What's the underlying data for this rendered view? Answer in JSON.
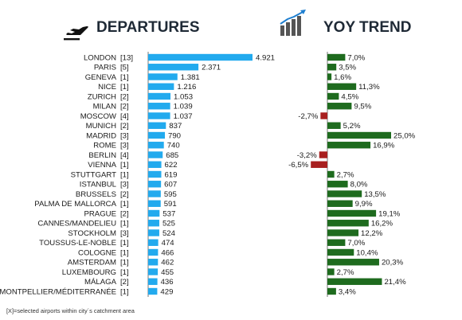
{
  "header": {
    "departures_title": "DEPARTURES",
    "trend_title": "YOY TREND",
    "departures_icon": "airplane-takeoff-icon",
    "trend_icon": "rising-bar-chart-icon"
  },
  "footnote": "[X]=selected airports within city´s catchment area",
  "chart_data": [
    {
      "type": "bar",
      "orientation": "horizontal",
      "title": "DEPARTURES",
      "categories": [
        "LONDON",
        "PARIS",
        "GENEVA",
        "NICE",
        "ZURICH",
        "MILAN",
        "MOSCOW",
        "MUNICH",
        "MADRID",
        "ROME",
        "BERLIN",
        "VIENNA",
        "STUTTGART",
        "ISTANBUL",
        "BRUSSELS",
        "PALMA DE MALLORCA",
        "PRAGUE",
        "CANNES/MANDELIEU",
        "STOCKHOLM",
        "TOUSSUS-LE-NOBLE",
        "COLOGNE",
        "AMSTERDAM",
        "LUXEMBOURG",
        "MÁLAGA",
        "MONTPELLIER/MÉDITERRANÉE"
      ],
      "airport_counts": [
        "[13]",
        "[5]",
        "[1]",
        "[1]",
        "[2]",
        "[2]",
        "[4]",
        "[2]",
        "[3]",
        "[3]",
        "[4]",
        "[1]",
        "[1]",
        "[3]",
        "[2]",
        "[1]",
        "[2]",
        "[1]",
        "[3]",
        "[1]",
        "[1]",
        "[1]",
        "[1]",
        "[2]",
        "[1]"
      ],
      "values": [
        4921,
        2371,
        1381,
        1216,
        1053,
        1039,
        1037,
        837,
        790,
        740,
        685,
        622,
        619,
        607,
        595,
        591,
        537,
        525,
        524,
        474,
        466,
        462,
        455,
        436,
        429
      ],
      "value_labels": [
        "4.921",
        "2.371",
        "1.381",
        "1.216",
        "1.053",
        "1.039",
        "1.037",
        "837",
        "790",
        "740",
        "685",
        "622",
        "619",
        "607",
        "595",
        "591",
        "537",
        "525",
        "524",
        "474",
        "466",
        "462",
        "455",
        "436",
        "429"
      ],
      "xlim": [
        0,
        4921
      ],
      "color": "#22aaee",
      "grid": false,
      "legend": "none"
    },
    {
      "type": "bar",
      "orientation": "horizontal",
      "title": "YOY TREND",
      "categories": [
        "LONDON",
        "PARIS",
        "GENEVA",
        "NICE",
        "ZURICH",
        "MILAN",
        "MOSCOW",
        "MUNICH",
        "MADRID",
        "ROME",
        "BERLIN",
        "VIENNA",
        "STUTTGART",
        "ISTANBUL",
        "BRUSSELS",
        "PALMA DE MALLORCA",
        "PRAGUE",
        "CANNES/MANDELIEU",
        "STOCKHOLM",
        "TOUSSUS-LE-NOBLE",
        "COLOGNE",
        "AMSTERDAM",
        "LUXEMBOURG",
        "MÁLAGA",
        "MONTPELLIER/MÉDITERRANÉE"
      ],
      "values": [
        7.0,
        3.5,
        1.6,
        11.3,
        4.5,
        9.5,
        -2.7,
        5.2,
        25.0,
        16.9,
        -3.2,
        -6.5,
        2.7,
        8.0,
        13.5,
        9.9,
        19.1,
        16.2,
        12.2,
        7.0,
        10.4,
        20.3,
        2.7,
        21.4,
        3.4
      ],
      "value_labels": [
        "7,0%",
        "3,5%",
        "1,6%",
        "11,3%",
        "4,5%",
        "9,5%",
        "-2,7%",
        "5,2%",
        "25,0%",
        "16,9%",
        "-3,2%",
        "-6,5%",
        "2,7%",
        "8,0%",
        "13,5%",
        "9,9%",
        "19,1%",
        "16,2%",
        "12,2%",
        "7,0%",
        "10,4%",
        "20,3%",
        "2,7%",
        "21,4%",
        "3,4%"
      ],
      "xlim": [
        -6.5,
        25.0
      ],
      "positive_color": "#1e6b1e",
      "negative_color": "#a81f1f",
      "grid": false,
      "legend": "none"
    }
  ]
}
